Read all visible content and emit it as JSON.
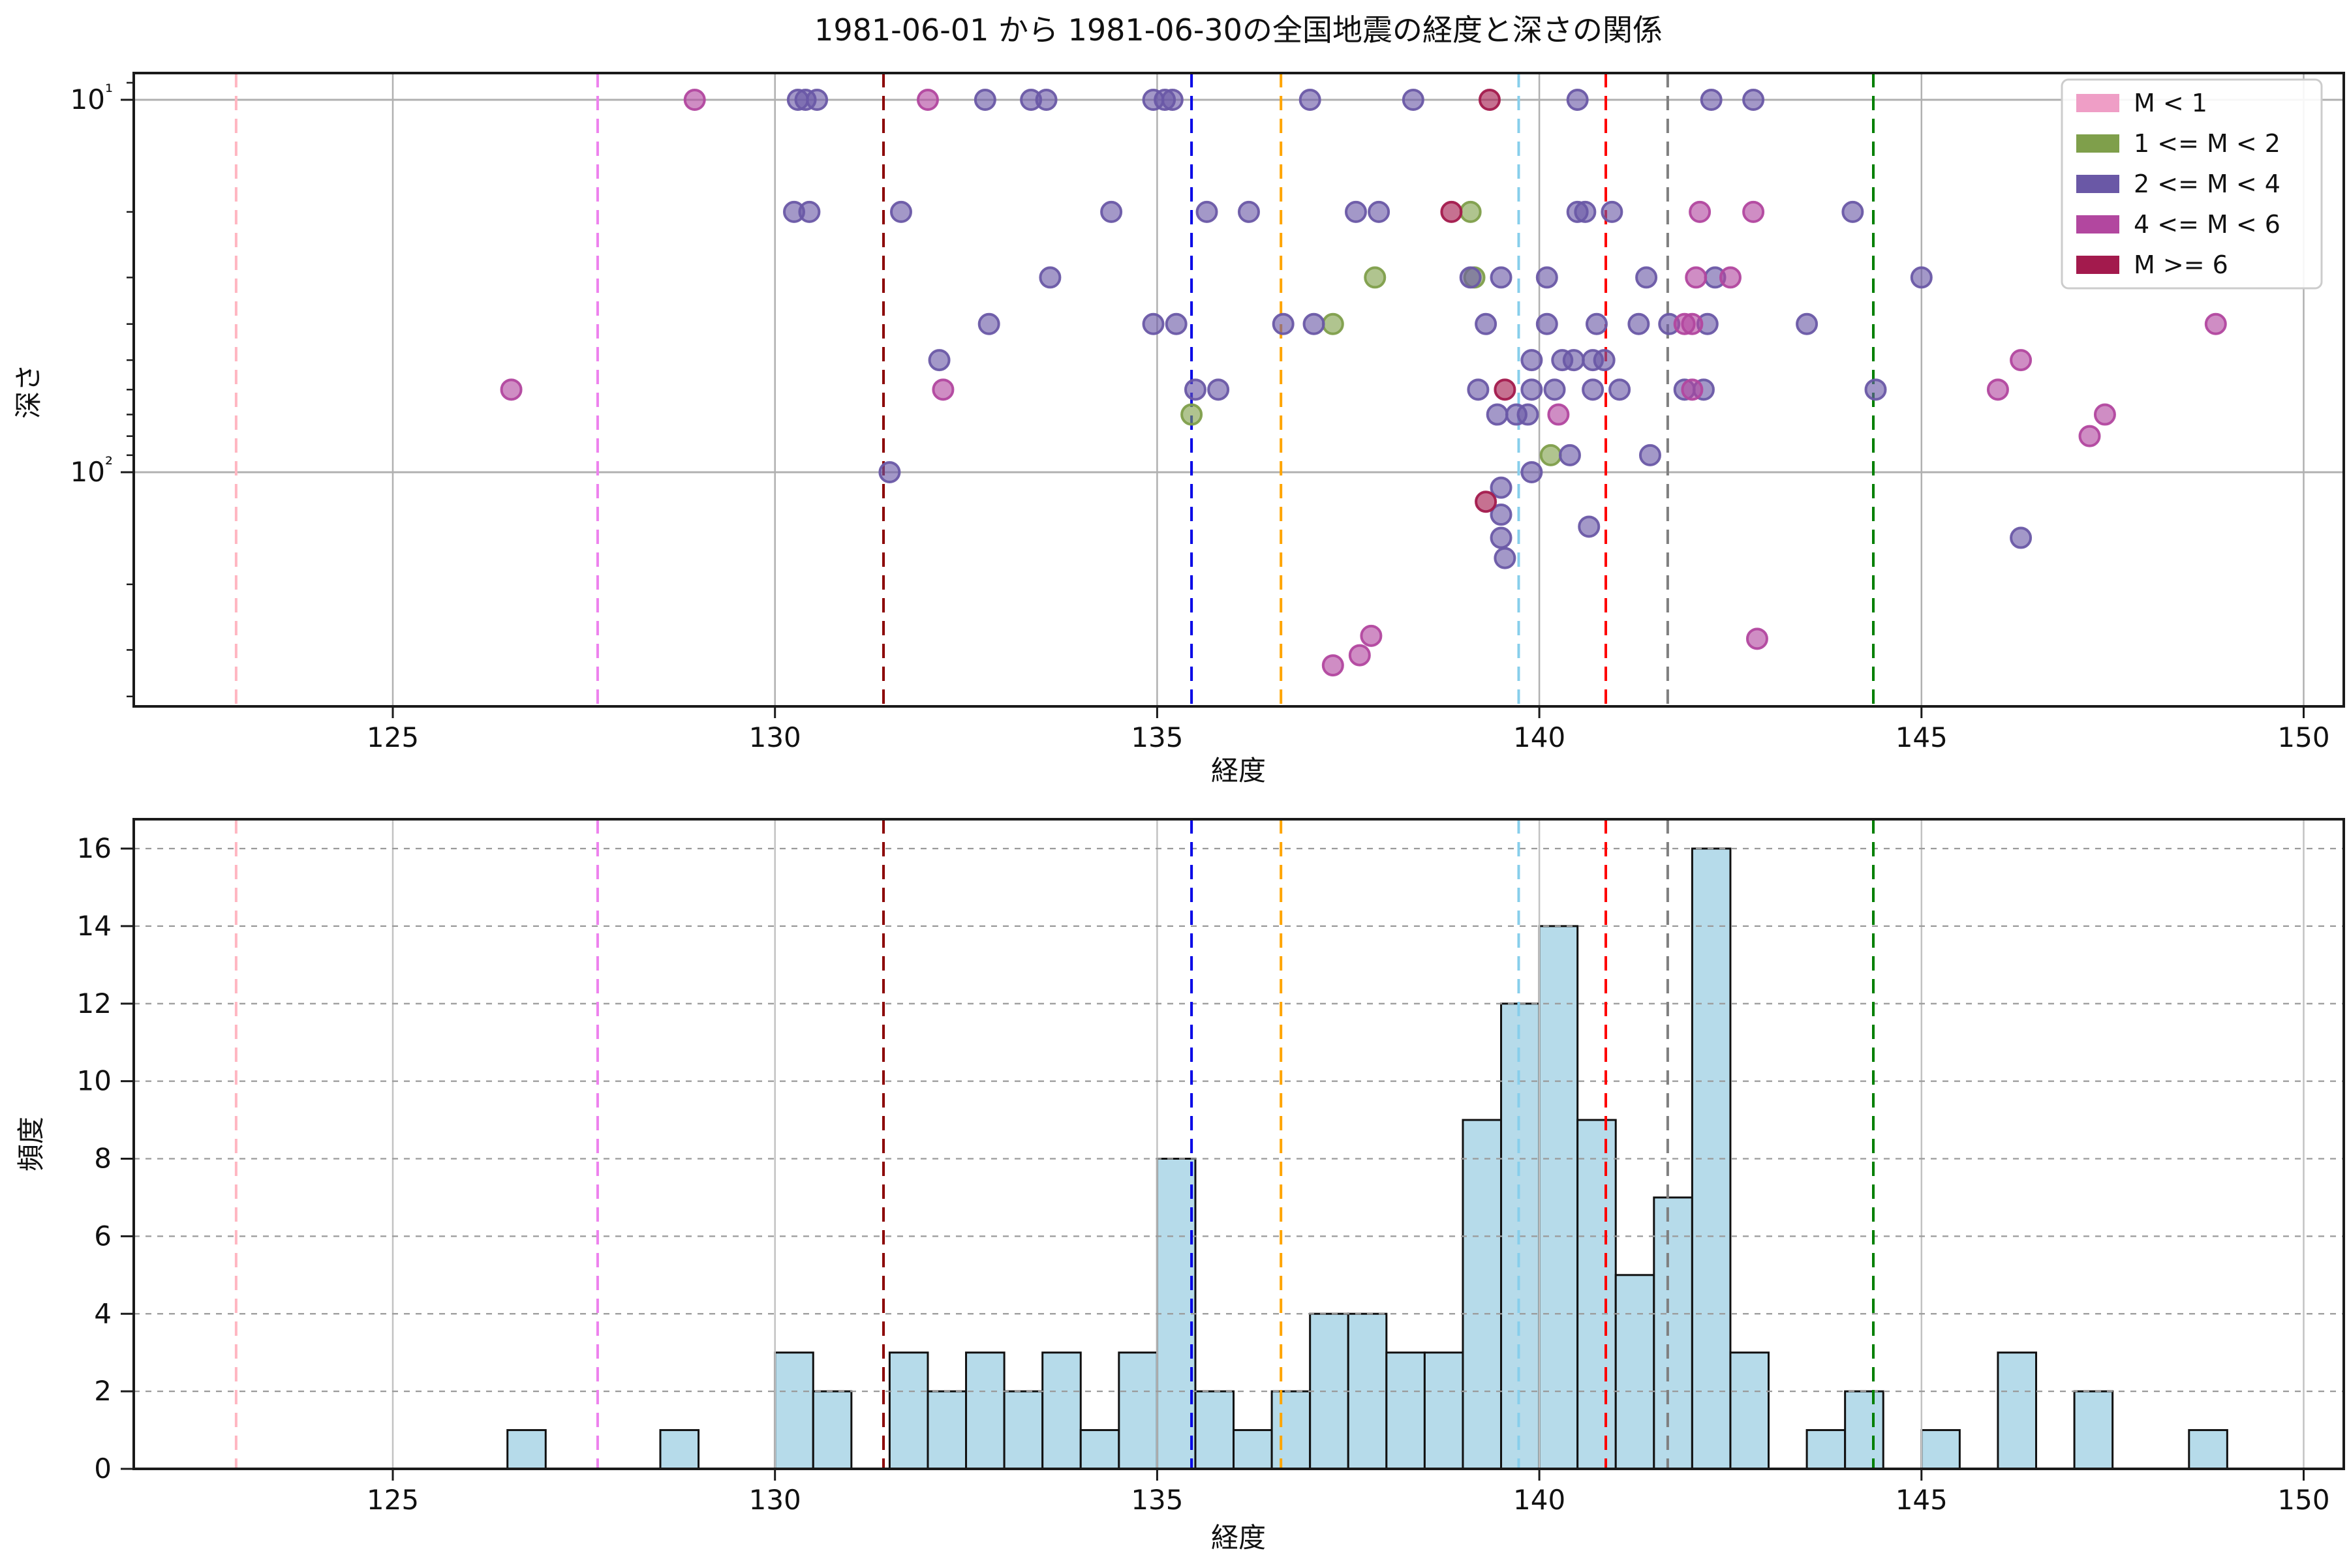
{
  "figure": {
    "title": "1981-06-01 から 1981-06-30の全国地震の経度と深さの関係",
    "background": "#ffffff"
  },
  "chart_data": [
    {
      "type": "scatter",
      "title": "1981-06-01 から 1981-06-30の全国地震の経度と深さの関係",
      "xlabel": "経度",
      "ylabel": "深さ",
      "xlim": [
        121.6,
        150.5
      ],
      "ylim": [
        8.5,
        427
      ],
      "y_scale": "log",
      "y_inverted": true,
      "grid": true,
      "xticks": [
        125,
        130,
        135,
        140,
        145,
        150
      ],
      "ytick_labels": [
        "10¹",
        "10²"
      ],
      "ytick_values": [
        10,
        100
      ],
      "y_minor_ticks": [
        9,
        20,
        30,
        40,
        50,
        60,
        70,
        80,
        90,
        200,
        300,
        400
      ],
      "legend_position": "upper right",
      "legend": [
        {
          "label": "M < 1",
          "color": "#ef9ec6"
        },
        {
          "label": "1 <= M < 2",
          "color": "#7f9f4b"
        },
        {
          "label": "2 <= M < 4",
          "color": "#6a58a6"
        },
        {
          "label": "4 <= M < 6",
          "color": "#b2479f"
        },
        {
          "label": "M >= 6",
          "color": "#a31a4d"
        }
      ],
      "vlines": [
        {
          "x": 122.95,
          "color": "#ffb6c1"
        },
        {
          "x": 127.68,
          "color": "#ee82ee"
        },
        {
          "x": 131.42,
          "color": "#8b0000"
        },
        {
          "x": 135.45,
          "color": "#0000e6"
        },
        {
          "x": 136.62,
          "color": "#ffa500"
        },
        {
          "x": 139.73,
          "color": "#87ceeb"
        },
        {
          "x": 140.87,
          "color": "#ff0000"
        },
        {
          "x": 141.68,
          "color": "#7f7f7f"
        },
        {
          "x": 144.37,
          "color": "#008000"
        }
      ],
      "series": [
        {
          "name": "M < 1",
          "color": "#ef9ec6",
          "points": []
        },
        {
          "name": "1 <= M < 2",
          "color": "#7f9f4b",
          "points": [
            [
              139.1,
              20
            ],
            [
              137.85,
              30
            ],
            [
              139.15,
              30
            ],
            [
              137.3,
              40
            ],
            [
              135.45,
              70
            ],
            [
              140.15,
              90
            ]
          ]
        },
        {
          "name": "2 <= M < 4",
          "color": "#6a58a6",
          "points": [
            [
              130.3,
              10
            ],
            [
              130.4,
              10
            ],
            [
              130.55,
              10
            ],
            [
              132.75,
              10
            ],
            [
              133.35,
              10
            ],
            [
              133.55,
              10
            ],
            [
              134.95,
              10
            ],
            [
              135.1,
              10
            ],
            [
              135.2,
              10
            ],
            [
              137.0,
              10
            ],
            [
              138.35,
              10
            ],
            [
              140.5,
              10
            ],
            [
              142.25,
              10
            ],
            [
              142.8,
              10
            ],
            [
              130.25,
              20
            ],
            [
              130.45,
              20
            ],
            [
              131.65,
              20
            ],
            [
              134.4,
              20
            ],
            [
              135.65,
              20
            ],
            [
              136.2,
              20
            ],
            [
              137.6,
              20
            ],
            [
              137.9,
              20
            ],
            [
              140.5,
              20
            ],
            [
              140.6,
              20
            ],
            [
              140.95,
              20
            ],
            [
              144.1,
              20
            ],
            [
              133.6,
              30
            ],
            [
              139.1,
              30
            ],
            [
              139.5,
              30
            ],
            [
              140.1,
              30
            ],
            [
              141.4,
              30
            ],
            [
              142.3,
              30
            ],
            [
              145.0,
              30
            ],
            [
              132.8,
              40
            ],
            [
              134.95,
              40
            ],
            [
              135.25,
              40
            ],
            [
              136.65,
              40
            ],
            [
              137.05,
              40
            ],
            [
              139.3,
              40
            ],
            [
              140.1,
              40
            ],
            [
              140.75,
              40
            ],
            [
              141.3,
              40
            ],
            [
              141.7,
              40
            ],
            [
              142.2,
              40
            ],
            [
              143.5,
              40
            ],
            [
              132.15,
              50
            ],
            [
              139.9,
              50
            ],
            [
              140.3,
              50
            ],
            [
              140.45,
              50
            ],
            [
              140.7,
              50
            ],
            [
              140.85,
              50
            ],
            [
              135.5,
              60
            ],
            [
              135.8,
              60
            ],
            [
              139.2,
              60
            ],
            [
              139.9,
              60
            ],
            [
              140.2,
              60
            ],
            [
              140.7,
              60
            ],
            [
              141.05,
              60
            ],
            [
              141.9,
              60
            ],
            [
              142.15,
              60
            ],
            [
              144.4,
              60
            ],
            [
              139.45,
              70
            ],
            [
              139.7,
              70
            ],
            [
              139.85,
              70
            ],
            [
              140.4,
              90
            ],
            [
              141.45,
              90
            ],
            [
              131.5,
              100
            ],
            [
              139.9,
              100
            ],
            [
              139.5,
              110
            ],
            [
              139.5,
              130
            ],
            [
              140.65,
              140
            ],
            [
              139.5,
              150
            ],
            [
              146.3,
              150
            ],
            [
              139.55,
              170
            ]
          ]
        },
        {
          "name": "4 <= M < 6",
          "color": "#b2479f",
          "points": [
            [
              128.95,
              10
            ],
            [
              132.0,
              10
            ],
            [
              142.1,
              20
            ],
            [
              142.8,
              20
            ],
            [
              142.05,
              30
            ],
            [
              142.5,
              30
            ],
            [
              141.9,
              40
            ],
            [
              142.0,
              40
            ],
            [
              148.85,
              40
            ],
            [
              146.3,
              50
            ],
            [
              126.55,
              60
            ],
            [
              132.2,
              60
            ],
            [
              142.0,
              60
            ],
            [
              146.0,
              60
            ],
            [
              140.25,
              70
            ],
            [
              147.4,
              70
            ],
            [
              147.2,
              80
            ],
            [
              137.8,
              275
            ],
            [
              142.85,
              280
            ],
            [
              137.65,
              310
            ],
            [
              137.3,
              330
            ]
          ]
        },
        {
          "name": "M >= 6",
          "color": "#a31a4d",
          "points": [
            [
              139.35,
              10
            ],
            [
              138.85,
              20
            ],
            [
              139.55,
              60
            ],
            [
              139.3,
              120
            ]
          ]
        }
      ]
    },
    {
      "type": "bar",
      "subtype": "histogram",
      "xlabel": "経度",
      "ylabel": "頻度",
      "xlim": [
        121.6,
        150.5
      ],
      "ylim": [
        0,
        16.75
      ],
      "grid": true,
      "bar_fill": "#b6dbea",
      "bar_edge": "#111111",
      "xticks": [
        125,
        130,
        135,
        140,
        145,
        150
      ],
      "yticks": [
        0,
        2,
        4,
        6,
        8,
        10,
        12,
        14,
        16
      ],
      "bin_start": 126.5,
      "bin_width": 0.5,
      "counts": [
        1,
        0,
        0,
        0,
        1,
        0,
        0,
        3,
        2,
        0,
        3,
        2,
        3,
        2,
        3,
        1,
        3,
        8,
        2,
        1,
        2,
        4,
        4,
        3,
        3,
        9,
        12,
        14,
        9,
        5,
        7,
        16,
        3,
        0,
        1,
        2,
        0,
        1,
        0,
        3,
        0,
        2,
        0,
        0,
        1
      ],
      "vlines": [
        {
          "x": 122.95,
          "color": "#ffb6c1"
        },
        {
          "x": 127.68,
          "color": "#ee82ee"
        },
        {
          "x": 131.42,
          "color": "#8b0000"
        },
        {
          "x": 135.45,
          "color": "#0000e6"
        },
        {
          "x": 136.62,
          "color": "#ffa500"
        },
        {
          "x": 139.73,
          "color": "#87ceeb"
        },
        {
          "x": 140.87,
          "color": "#ff0000"
        },
        {
          "x": 141.68,
          "color": "#7f7f7f"
        },
        {
          "x": 144.37,
          "color": "#008000"
        }
      ]
    }
  ]
}
